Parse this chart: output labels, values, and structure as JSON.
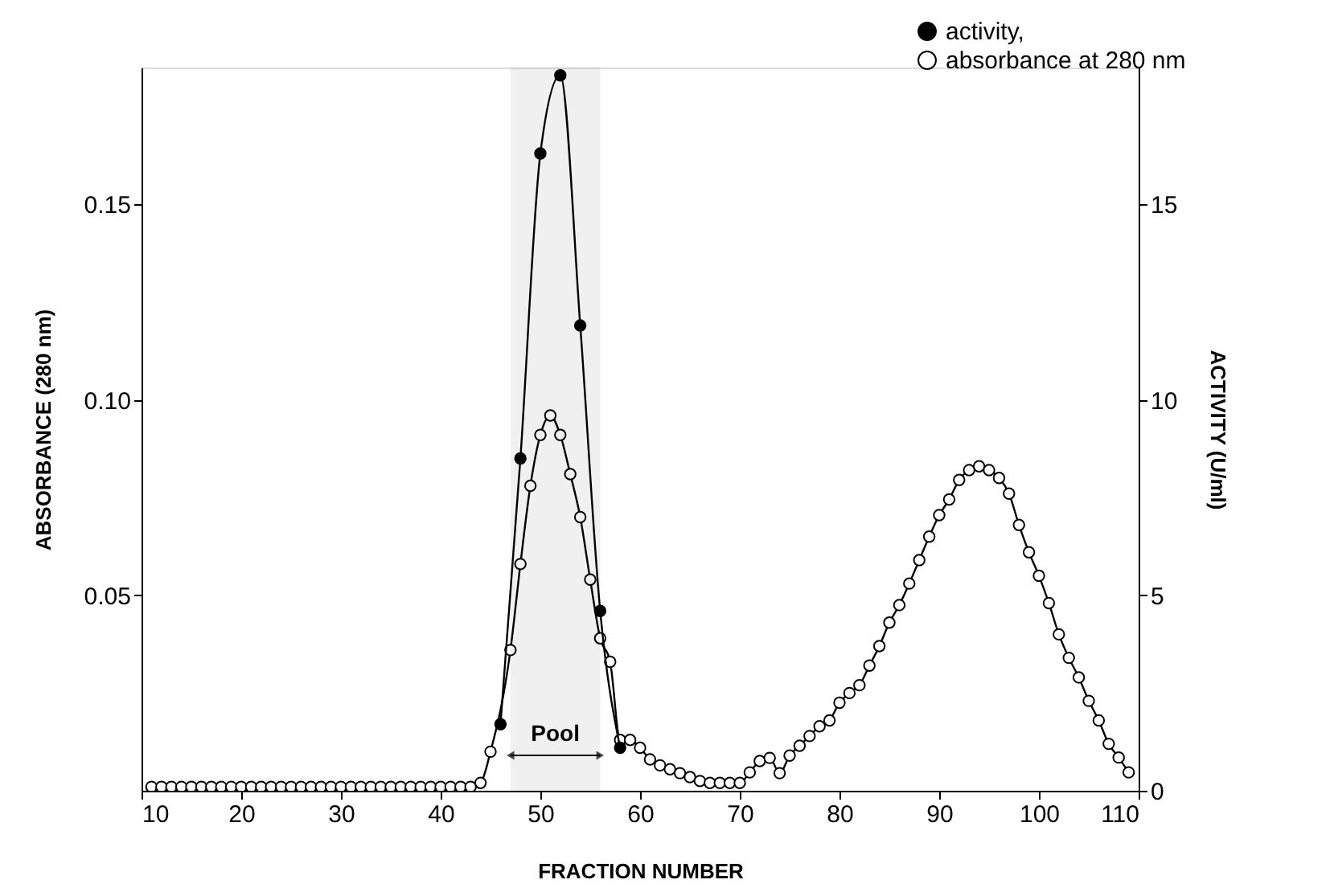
{
  "chart_data": {
    "type": "line",
    "xlabel": "FRACTION NUMBER",
    "ylabel": "ABSORBANCE (280 nm)",
    "y2label": "ACTIVITY (U/ml)",
    "xlim": [
      10,
      110
    ],
    "xticks": [
      10,
      20,
      30,
      40,
      50,
      60,
      70,
      80,
      90,
      100,
      110
    ],
    "ylim": [
      0,
      0.185
    ],
    "yticks": [
      {
        "value": 0.05,
        "label": "0.05"
      },
      {
        "value": 0.1,
        "label": "0.10"
      },
      {
        "value": 0.15,
        "label": "0.15"
      }
    ],
    "y2lim": [
      0,
      18.5
    ],
    "y2ticks": [
      0,
      5,
      10,
      15
    ],
    "marker": "circle",
    "line_style": "solid",
    "legend": "top right",
    "grid": false,
    "bands": [
      {
        "axis": "x",
        "from": 47,
        "to": 56,
        "label": "Pool"
      }
    ],
    "series": [
      {
        "name": "activity,",
        "color": "#000000",
        "axis": "y2",
        "x": [
          46,
          48,
          50,
          52,
          54,
          56,
          58
        ],
        "values": [
          1.7,
          8.5,
          16.3,
          18.3,
          11.9,
          4.6,
          1.1
        ]
      },
      {
        "name": "absorbance at 280 nm",
        "color": "#000000",
        "x": [
          11,
          12,
          13,
          14,
          15,
          16,
          17,
          18,
          19,
          20,
          21,
          22,
          23,
          24,
          25,
          26,
          27,
          28,
          29,
          30,
          31,
          32,
          33,
          34,
          35,
          36,
          37,
          38,
          39,
          40,
          41,
          42,
          43,
          44,
          45,
          47,
          48,
          49,
          50,
          51,
          52,
          53,
          54,
          55,
          56,
          57,
          58,
          59,
          60,
          61,
          62,
          63,
          64,
          65,
          66,
          67,
          68,
          69,
          70,
          71,
          72,
          73,
          74,
          75,
          76,
          77,
          78,
          79,
          80,
          81,
          82,
          83,
          84,
          85,
          86,
          87,
          88,
          89,
          90,
          91,
          92,
          93,
          94,
          95,
          96,
          97,
          98,
          99,
          100,
          101,
          102,
          103,
          104,
          105,
          106,
          107,
          108,
          109
        ],
        "values": [
          0.001,
          0.001,
          0.001,
          0.001,
          0.001,
          0.001,
          0.001,
          0.001,
          0.001,
          0.001,
          0.001,
          0.001,
          0.001,
          0.001,
          0.001,
          0.001,
          0.001,
          0.001,
          0.001,
          0.001,
          0.001,
          0.001,
          0.001,
          0.001,
          0.001,
          0.001,
          0.001,
          0.001,
          0.001,
          0.001,
          0.001,
          0.001,
          0.001,
          0.002,
          0.01,
          0.036,
          0.058,
          0.078,
          0.091,
          0.096,
          0.091,
          0.081,
          0.07,
          0.054,
          0.039,
          0.033,
          0.013,
          0.013,
          0.011,
          0.008,
          0.0065,
          0.0055,
          0.0045,
          0.0035,
          0.0025,
          0.002,
          0.002,
          0.002,
          0.002,
          0.0047,
          0.0076,
          0.0084,
          0.0045,
          0.009,
          0.0115,
          0.014,
          0.0165,
          0.018,
          0.0225,
          0.025,
          0.027,
          0.032,
          0.037,
          0.043,
          0.0475,
          0.053,
          0.059,
          0.065,
          0.0705,
          0.0745,
          0.0795,
          0.082,
          0.083,
          0.082,
          0.08,
          0.076,
          0.068,
          0.061,
          0.055,
          0.048,
          0.04,
          0.034,
          0.029,
          0.023,
          0.018,
          0.012,
          0.0085,
          0.0047
        ]
      }
    ]
  }
}
